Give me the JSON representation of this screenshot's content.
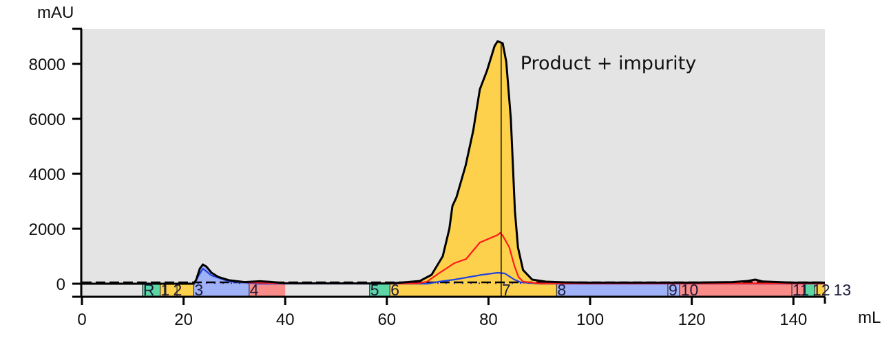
{
  "chart_data": {
    "type": "line",
    "xlabel": "mL",
    "ylabel": "mAU",
    "xlim": [
      0,
      146.2
    ],
    "ylim": [
      -475,
      9275
    ],
    "xticks": [
      0,
      20,
      40,
      60,
      80,
      100,
      120,
      140
    ],
    "yticks": [
      0,
      2000,
      4000,
      6000,
      8000
    ],
    "grid": false,
    "background": "#e4e4e4",
    "annotation": {
      "text": "Product + impurity",
      "x": 86,
      "y": 7800
    },
    "marker_line_x": 82.5,
    "series": [
      {
        "color": "#000000",
        "points": [
          [
            0,
            0
          ],
          [
            11,
            0
          ],
          [
            22,
            0
          ],
          [
            22.5,
            150
          ],
          [
            23.2,
            550
          ],
          [
            23.8,
            700
          ],
          [
            24.5,
            620
          ],
          [
            25.5,
            400
          ],
          [
            26.8,
            250
          ],
          [
            29,
            125
          ],
          [
            32,
            60
          ],
          [
            35,
            90
          ],
          [
            37,
            70
          ],
          [
            40,
            20
          ],
          [
            60,
            10
          ],
          [
            62,
            30
          ],
          [
            64,
            60
          ],
          [
            66.5,
            100
          ],
          [
            68.8,
            325
          ],
          [
            71,
            1000
          ],
          [
            72.3,
            2000
          ],
          [
            72.9,
            2825
          ],
          [
            73.7,
            3150
          ],
          [
            75.5,
            4300
          ],
          [
            77,
            5575
          ],
          [
            78.3,
            7075
          ],
          [
            79.7,
            7750
          ],
          [
            81.2,
            8650
          ],
          [
            81.8,
            8825
          ],
          [
            82.8,
            8750
          ],
          [
            83.5,
            8075
          ],
          [
            84.4,
            6000
          ],
          [
            85.2,
            2650
          ],
          [
            85.8,
            1325
          ],
          [
            86.8,
            500
          ],
          [
            88.6,
            150
          ],
          [
            91.3,
            75
          ],
          [
            95,
            50
          ],
          [
            100,
            40
          ],
          [
            120,
            40
          ],
          [
            128,
            60
          ],
          [
            131,
            100
          ],
          [
            132.5,
            150
          ],
          [
            134,
            80
          ],
          [
            140,
            40
          ],
          [
            146.2,
            40
          ]
        ]
      },
      {
        "color": "#ff1a1a",
        "points": [
          [
            0,
            0
          ],
          [
            22,
            0
          ],
          [
            22.5,
            150
          ],
          [
            23.2,
            550
          ],
          [
            23.8,
            700
          ],
          [
            24.5,
            620
          ],
          [
            25.5,
            400
          ],
          [
            26.8,
            250
          ],
          [
            29,
            120
          ],
          [
            32,
            50
          ],
          [
            40,
            10
          ],
          [
            66,
            10
          ],
          [
            67.9,
            75
          ],
          [
            70,
            350
          ],
          [
            73.3,
            750
          ],
          [
            75.6,
            900
          ],
          [
            78.3,
            1500
          ],
          [
            81.8,
            1775
          ],
          [
            82.3,
            1850
          ],
          [
            82.8,
            1750
          ],
          [
            84.1,
            1325
          ],
          [
            85.1,
            650
          ],
          [
            85.9,
            250
          ],
          [
            86.8,
            75
          ],
          [
            90,
            10
          ],
          [
            146.2,
            10
          ]
        ]
      },
      {
        "color": "#2244dd",
        "points": [
          [
            0,
            0
          ],
          [
            22,
            0
          ],
          [
            23.8,
            550
          ],
          [
            25.5,
            300
          ],
          [
            29,
            80
          ],
          [
            35,
            0
          ],
          [
            68,
            0
          ],
          [
            70.2,
            75
          ],
          [
            73.3,
            150
          ],
          [
            78.7,
            325
          ],
          [
            81.8,
            400
          ],
          [
            83.2,
            375
          ],
          [
            85.1,
            150
          ],
          [
            86.4,
            50
          ],
          [
            90,
            0
          ],
          [
            146.2,
            0
          ]
        ]
      }
    ],
    "baseline_dashed": {
      "color": "#000000",
      "value": 50
    },
    "baseline_dotted": {
      "color": "#3333cc",
      "value": 20
    },
    "fractions": [
      {
        "label": "R",
        "start": 11.9,
        "end": 15.4,
        "color": "#5dd6a6"
      },
      {
        "label": "1",
        "start": 15.4,
        "end": 16.2,
        "color": "#fdd14b"
      },
      {
        "label": "2",
        "start": 16.2,
        "end": 18.7,
        "color": "#fdd14b"
      },
      {
        "label": "",
        "start": 18.7,
        "end": 22.0,
        "color": "#fdd14b"
      },
      {
        "label": "3",
        "start": 22.0,
        "end": 32.9,
        "color": "#9fb1f7"
      },
      {
        "label": "4",
        "start": 32.9,
        "end": 40.0,
        "color": "#f98c88"
      },
      {
        "label": "5",
        "start": 56.6,
        "end": 60.6,
        "color": "#5dd6a6"
      },
      {
        "label": "6",
        "start": 60.6,
        "end": 82.5,
        "color": "#fdd14b"
      },
      {
        "label": "7",
        "start": 82.5,
        "end": 93.4,
        "color": "#fdd14b"
      },
      {
        "label": "8",
        "start": 93.4,
        "end": 115.3,
        "color": "#9fb1f7"
      },
      {
        "label": "9",
        "start": 115.3,
        "end": 117.6,
        "color": "#9fb1f7"
      },
      {
        "label": "10",
        "start": 117.6,
        "end": 139.7,
        "color": "#f98c88"
      },
      {
        "label": "11",
        "start": 139.7,
        "end": 142.0,
        "color": "#f98c88"
      },
      {
        "label": "12",
        "start": 142.0,
        "end": 144.2,
        "color": "#5dd6a6"
      },
      {
        "label": "13",
        "start": 144.2,
        "end": 146.2,
        "color": "#fdd14b"
      }
    ]
  }
}
